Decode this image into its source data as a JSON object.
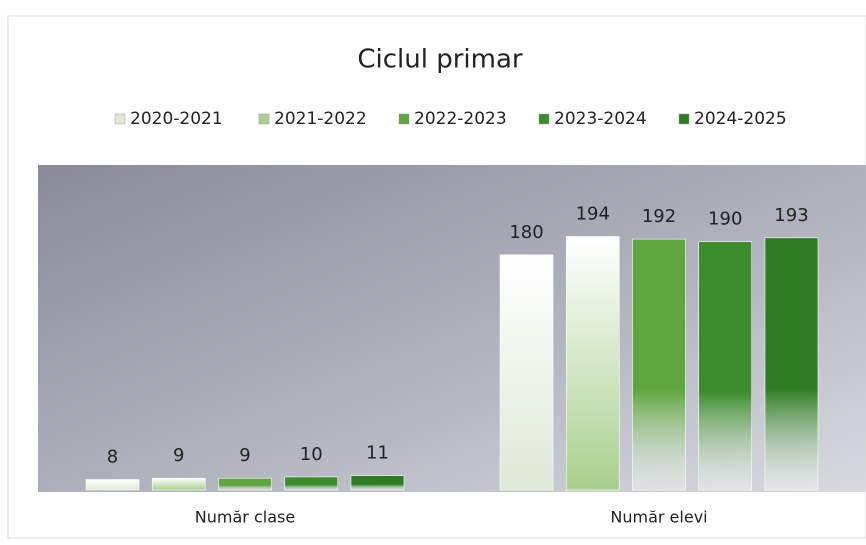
{
  "chart_data": {
    "type": "bar",
    "title": "Ciclul primar",
    "categories": [
      "Număr clase",
      "Număr elevi"
    ],
    "series": [
      {
        "name": "2020-2021",
        "color": "#dfe9d6",
        "values": [
          8,
          180
        ]
      },
      {
        "name": "2021-2022",
        "color": "#a9d08e",
        "values": [
          9,
          194
        ]
      },
      {
        "name": "2022-2023",
        "color": "#5fa641",
        "values": [
          9,
          192
        ]
      },
      {
        "name": "2023-2024",
        "color": "#3b8c2a",
        "values": [
          10,
          190
        ]
      },
      {
        "name": "2024-2025",
        "color": "#2f7d23",
        "values": [
          11,
          193
        ]
      }
    ],
    "legend": "top"
  }
}
